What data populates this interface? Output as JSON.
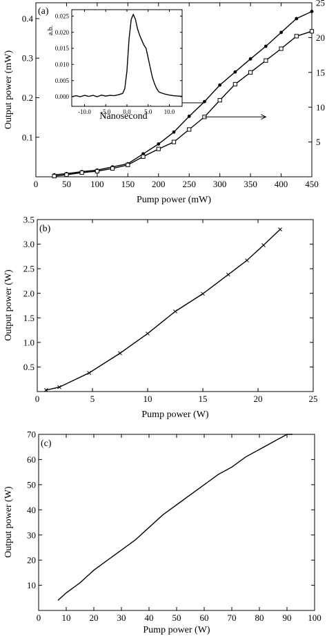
{
  "chart_data": [
    {
      "type": "line",
      "panel_label": "(a)",
      "xlabel": "Pump power (mW)",
      "ylabel": "Output power (mW)",
      "xlim": [
        0,
        450
      ],
      "ylim": [
        0,
        0.44
      ],
      "y2lim": [
        0,
        25
      ],
      "x_ticks": [
        0,
        50,
        100,
        150,
        200,
        250,
        300,
        350,
        400,
        450
      ],
      "y_ticks": [
        0.1,
        0.2,
        0.3,
        0.4
      ],
      "y2_ticks": [
        5,
        10,
        15,
        20,
        25
      ],
      "series": [
        {
          "axis": "left",
          "marker": "dot",
          "x": [
            30,
            50,
            75,
            100,
            125,
            150,
            175,
            200,
            225,
            250,
            275,
            300,
            325,
            350,
            375,
            400,
            425,
            450
          ],
          "y": [
            0.005,
            0.008,
            0.013,
            0.017,
            0.025,
            0.033,
            0.058,
            0.083,
            0.113,
            0.153,
            0.19,
            0.232,
            0.265,
            0.298,
            0.33,
            0.365,
            0.4,
            0.418
          ]
        },
        {
          "axis": "right",
          "marker": "square",
          "x": [
            30,
            50,
            75,
            100,
            125,
            150,
            175,
            200,
            225,
            250,
            275,
            300,
            325,
            350,
            375,
            400,
            425,
            450
          ],
          "y": [
            0.1,
            0.3,
            0.6,
            0.8,
            1.2,
            1.7,
            2.9,
            4.0,
            5.0,
            6.8,
            8.6,
            11.0,
            13.3,
            15.0,
            16.7,
            18.4,
            20.2,
            20.9
          ]
        }
      ],
      "annotations": [
        {
          "type": "arrow",
          "direction": "left",
          "target_axis": "left",
          "data": [
            [
              275,
              0.187
            ],
            [
              180,
              0.187
            ]
          ]
        },
        {
          "type": "arrow",
          "direction": "right",
          "target_axis": "right",
          "data": [
            [
              275,
              8.6
            ],
            [
              375,
              8.6
            ]
          ]
        }
      ],
      "inset": {
        "type": "line",
        "xlabel": "Nanosecond",
        "ylabel": "a.b.",
        "xlim": [
          -13,
          13
        ],
        "ylim": [
          -0.003,
          0.027
        ],
        "x_ticks": [
          -10.0,
          -5.0,
          0.0,
          5.0,
          10.0
        ],
        "y_ticks": [
          0.0,
          0.005,
          0.01,
          0.015,
          0.02,
          0.025
        ],
        "x_tick_labels": [
          "-10.0",
          "-5.0",
          "0.0",
          "5.0",
          "10.0"
        ],
        "y_tick_labels": [
          "0.000",
          "0.005",
          "0.010",
          "0.015",
          "0.020",
          "0.025"
        ],
        "x": [
          -13,
          -12,
          -11,
          -10,
          -9,
          -8,
          -7,
          -6,
          -5,
          -4,
          -3,
          -2,
          -1,
          -0.5,
          0,
          0.5,
          1.0,
          1.5,
          2.0,
          2.5,
          3.0,
          3.5,
          4.0,
          4.5,
          5.0,
          5.5,
          6.0,
          6.5,
          7.0,
          7.5,
          8,
          9,
          10,
          11,
          12,
          13
        ],
        "y": [
          0.0,
          0.0003,
          0.0,
          0.0004,
          0.0001,
          0.0004,
          0.0,
          0.0005,
          0.0002,
          0.0004,
          0.0003,
          0.0006,
          0.001,
          0.0025,
          0.008,
          0.018,
          0.024,
          0.0255,
          0.024,
          0.021,
          0.019,
          0.0175,
          0.016,
          0.015,
          0.012,
          0.009,
          0.006,
          0.004,
          0.0025,
          0.0015,
          0.0012,
          0.0008,
          0.0005,
          0.0003,
          0.0002,
          0.0001
        ]
      }
    },
    {
      "type": "line",
      "panel_label": "(b)",
      "xlabel": "Pump power (W)",
      "ylabel": "Output power (W)",
      "xlim": [
        0,
        25
      ],
      "ylim": [
        0,
        3.5
      ],
      "x_ticks": [
        0,
        5,
        10,
        15,
        20,
        25
      ],
      "y_ticks": [
        0.5,
        1.0,
        1.5,
        2.0,
        2.5,
        3.0,
        3.5
      ],
      "x": [
        0.8,
        2.0,
        4.7,
        7.5,
        10.0,
        12.5,
        15.0,
        17.3,
        19.0,
        20.5,
        22.0
      ],
      "y": [
        0.03,
        0.09,
        0.38,
        0.78,
        1.18,
        1.63,
        1.99,
        2.38,
        2.67,
        2.98,
        3.3
      ]
    },
    {
      "type": "line",
      "panel_label": "(c)",
      "xlabel": "Pump power (W)",
      "ylabel": "Output power (W)",
      "xlim": [
        0,
        100
      ],
      "ylim": [
        0,
        70
      ],
      "x_ticks": [
        0,
        10,
        20,
        30,
        40,
        50,
        60,
        70,
        80,
        90,
        100
      ],
      "y_ticks": [
        10,
        20,
        30,
        40,
        50,
        60,
        70
      ],
      "x": [
        7,
        10,
        15,
        20,
        25,
        30,
        35,
        40,
        45,
        50,
        55,
        60,
        65,
        70,
        75,
        80,
        85,
        90,
        92
      ],
      "y": [
        4,
        7,
        11,
        16,
        20,
        24,
        28,
        33,
        38,
        42,
        46,
        50,
        54,
        57,
        61,
        64,
        67,
        70,
        70
      ]
    }
  ]
}
